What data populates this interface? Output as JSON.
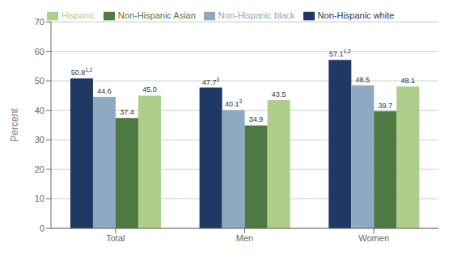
{
  "chart_data": {
    "type": "bar",
    "categories": [
      "Total",
      "Men",
      "Women"
    ],
    "series": [
      {
        "name": "Non-Hispanic white",
        "color": "#1F3864",
        "values": [
          50.8,
          47.7,
          57.1
        ]
      },
      {
        "name": "Non-Hispanic black",
        "color": "#8EA9C1",
        "values": [
          44.6,
          40.1,
          48.5
        ]
      },
      {
        "name": "Non-Hispanic Asian",
        "color": "#4F7942",
        "values": [
          37.4,
          34.9,
          39.7
        ]
      },
      {
        "name": "Hispanic",
        "color": "#AECF8B",
        "values": [
          45.0,
          43.5,
          48.1
        ],
        "value_labels": [
          "45.0",
          "43.5",
          "48.1"
        ]
      }
    ],
    "ylabel": "Percent",
    "ylim": [
      0,
      70
    ],
    "yticks": [
      0,
      10,
      20,
      30,
      40,
      50,
      60,
      70
    ],
    "grid": true,
    "legend": "top",
    "data_labels": true,
    "annotations": [
      {
        "text": "1,2",
        "series": "Non-Hispanic white",
        "category": "Total"
      },
      {
        "text": "3",
        "series": "Non-Hispanic white",
        "category": "Men"
      },
      {
        "text": "1,2",
        "series": "Non-Hispanic white",
        "category": "Women"
      },
      {
        "text": "3",
        "series": "Non-Hispanic black",
        "category": "Men"
      }
    ]
  }
}
